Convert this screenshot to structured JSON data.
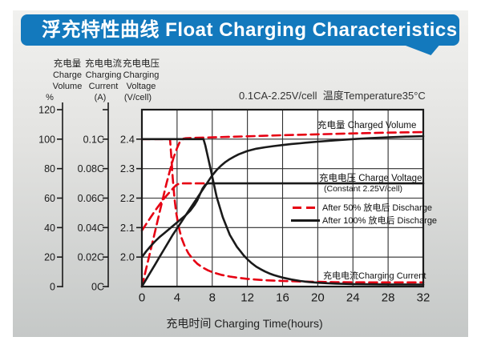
{
  "banner": {
    "title": "浮充特性曲线 Float Charging Characteristics",
    "color": "#1379bd"
  },
  "axes": {
    "volume": {
      "cjk": "充电量",
      "en1": "Charge",
      "en2": "Volume",
      "unit": "%"
    },
    "current": {
      "cjk": "充电电流",
      "en1": "Charging",
      "en2": "Current",
      "unit": "(A)"
    },
    "voltage": {
      "cjk": "充电电压",
      "en1": "Charging",
      "en2": "Voltage",
      "unit": "(V/cell)"
    }
  },
  "condition_note": "0.1CA-2.25V/cell  温度Temperature35°C",
  "x_axis_label": "充电时间 Charging Time(hours)",
  "chart_data": {
    "type": "line",
    "title": "浮充特性曲线 Float Charging Characteristics",
    "xlabel": "充电时间 Charging Time(hours)",
    "x_unit": "hours",
    "xlim": [
      0,
      32
    ],
    "x_ticks": [
      0,
      4,
      8,
      12,
      16,
      20,
      24,
      28,
      32
    ],
    "grid": true,
    "y_scale_note": "series y values are on the charge-volume % scale (0-120); charging current C-rate = y/1000 (100 => 0.1C); charging voltage V/cell = 1.9 + y/200 (70 => 2.25V)",
    "y_percent_lim": [
      0,
      120
    ],
    "volume_ticks": [
      [
        "120",
        120
      ],
      [
        "100",
        100
      ],
      [
        "80",
        80
      ],
      [
        "60",
        60
      ],
      [
        "40",
        40
      ],
      [
        "20",
        20
      ],
      [
        "0",
        0
      ]
    ],
    "current_ticks": [
      [
        "0.1C",
        100
      ],
      [
        "0.08C",
        80
      ],
      [
        "0.06C",
        60
      ],
      [
        "0.04C",
        40
      ],
      [
        "0.02C",
        20
      ],
      [
        "0C",
        0
      ]
    ],
    "voltage_ticks": [
      [
        "2.4",
        100
      ],
      [
        "2.3",
        80
      ],
      [
        "2.2",
        60
      ],
      [
        "2.1",
        40
      ],
      [
        "2.0",
        20
      ]
    ],
    "annotations": {
      "charged_volume": "充电量 Charged Volume",
      "charge_voltage": "充电电压 Charge Voltage",
      "charge_voltage_sub": "(Constant 2.25V/cell)",
      "charging_current": "充电电流Charging Current"
    },
    "legend": [
      {
        "label": "After 50%  放电后 Discharge",
        "color": "#e60012",
        "style": "dashed"
      },
      {
        "label": "After 100%  放电后 Discharge",
        "color": "#1a1a1a",
        "style": "solid"
      }
    ],
    "colors": {
      "red": "#e60012",
      "black": "#1a1a1a"
    },
    "series": [
      {
        "name": "charged-volume-after-50-discharge",
        "color": "#e60012",
        "dash": true,
        "points": [
          [
            0,
            0
          ],
          [
            0.4,
            10
          ],
          [
            0.8,
            20
          ],
          [
            1.2,
            30
          ],
          [
            1.6,
            40
          ],
          [
            2,
            50
          ],
          [
            2.4,
            60
          ],
          [
            2.8,
            70
          ],
          [
            3.2,
            79
          ],
          [
            3.6,
            87.5
          ],
          [
            4,
            94
          ],
          [
            4.3,
            98
          ],
          [
            4.7,
            100.3
          ],
          [
            5,
            100.6
          ],
          [
            6,
            100.9
          ],
          [
            8,
            101.2
          ],
          [
            10,
            101.6
          ],
          [
            12,
            101.9
          ],
          [
            14,
            102.3
          ],
          [
            16,
            102.7
          ],
          [
            20,
            103.3
          ],
          [
            24,
            103.9
          ],
          [
            28,
            104.4
          ],
          [
            32,
            104.8
          ]
        ]
      },
      {
        "name": "charge-voltage-after-50-discharge",
        "color": "#e60012",
        "dash": true,
        "points": [
          [
            0,
            38
          ],
          [
            0.5,
            42.5
          ],
          [
            1,
            47
          ],
          [
            1.5,
            51.5
          ],
          [
            2,
            55.5
          ],
          [
            2.5,
            59.5
          ],
          [
            3,
            63
          ],
          [
            3.3,
            65
          ],
          [
            3.6,
            67
          ],
          [
            3.9,
            68.8
          ],
          [
            4.2,
            69.8
          ],
          [
            4.5,
            70
          ],
          [
            7.5,
            70
          ]
        ]
      },
      {
        "name": "charging-current-after-50-discharge",
        "color": "#e60012",
        "dash": true,
        "points": [
          [
            0,
            100
          ],
          [
            3.2,
            100
          ],
          [
            3.35,
            88
          ],
          [
            3.5,
            74
          ],
          [
            3.7,
            60
          ],
          [
            3.9,
            50
          ],
          [
            4.2,
            40
          ],
          [
            4.5,
            33
          ],
          [
            4.9,
            27
          ],
          [
            5.3,
            22.5
          ],
          [
            5.8,
            18.5
          ],
          [
            6.3,
            15.5
          ],
          [
            6.9,
            13
          ],
          [
            7.5,
            11
          ],
          [
            8,
            9.8
          ],
          [
            9,
            8
          ],
          [
            10,
            6.8
          ],
          [
            11,
            5.9
          ],
          [
            12,
            5.2
          ],
          [
            13,
            4.7
          ],
          [
            14,
            4.3
          ],
          [
            15,
            4
          ],
          [
            16,
            3.8
          ],
          [
            18,
            3.4
          ],
          [
            20,
            3.2
          ],
          [
            22,
            3
          ],
          [
            24,
            2.9
          ],
          [
            28,
            2.8
          ],
          [
            32,
            2.8
          ]
        ]
      },
      {
        "name": "charged-volume-after-100-discharge",
        "color": "#1a1a1a",
        "dash": false,
        "points": [
          [
            0,
            0
          ],
          [
            0.5,
            5
          ],
          [
            1,
            10
          ],
          [
            1.5,
            15
          ],
          [
            2,
            20
          ],
          [
            2.5,
            25
          ],
          [
            3,
            30
          ],
          [
            3.5,
            35
          ],
          [
            4,
            39.5
          ],
          [
            4.5,
            44
          ],
          [
            5,
            48.5
          ],
          [
            5.5,
            53
          ],
          [
            6,
            57.5
          ],
          [
            6.5,
            62
          ],
          [
            7,
            66.5
          ],
          [
            7.5,
            71
          ],
          [
            8,
            75.5
          ],
          [
            8.5,
            79
          ],
          [
            9,
            82
          ],
          [
            9.5,
            84.5
          ],
          [
            10,
            86.5
          ],
          [
            10.5,
            88.2
          ],
          [
            11,
            89.7
          ],
          [
            12,
            92
          ],
          [
            13,
            93.5
          ],
          [
            14,
            94.5
          ],
          [
            15,
            95.3
          ],
          [
            16,
            96
          ],
          [
            17,
            96.7
          ],
          [
            18,
            97.2
          ],
          [
            19,
            97.8
          ],
          [
            20,
            98.3
          ],
          [
            22,
            99.2
          ],
          [
            24,
            100
          ],
          [
            26,
            100.7
          ],
          [
            28,
            101.2
          ],
          [
            30,
            101.7
          ],
          [
            32,
            102
          ]
        ]
      },
      {
        "name": "charge-voltage-after-100-discharge",
        "color": "#1a1a1a",
        "dash": false,
        "points": [
          [
            0,
            20
          ],
          [
            0.5,
            24
          ],
          [
            1,
            27.5
          ],
          [
            1.5,
            30.7
          ],
          [
            2,
            33.5
          ],
          [
            2.5,
            36
          ],
          [
            3,
            38.5
          ],
          [
            3.5,
            41
          ],
          [
            4,
            43.5
          ],
          [
            4.5,
            46
          ],
          [
            5,
            48.5
          ],
          [
            5.5,
            51.5
          ],
          [
            6,
            55.5
          ],
          [
            6.3,
            58.5
          ],
          [
            6.6,
            62.5
          ],
          [
            6.9,
            66.5
          ],
          [
            7.2,
            69
          ],
          [
            7.5,
            70
          ],
          [
            32,
            70
          ]
        ]
      },
      {
        "name": "charging-current-after-100-discharge",
        "color": "#1a1a1a",
        "dash": false,
        "points": [
          [
            0,
            100
          ],
          [
            7,
            100
          ],
          [
            7.2,
            96
          ],
          [
            7.5,
            88
          ],
          [
            7.8,
            80
          ],
          [
            8.1,
            72
          ],
          [
            8.5,
            61
          ],
          [
            8.9,
            53
          ],
          [
            9.2,
            47
          ],
          [
            9.6,
            41
          ],
          [
            10,
            35
          ],
          [
            10.4,
            31
          ],
          [
            10.8,
            27
          ],
          [
            11.2,
            24
          ],
          [
            11.6,
            21
          ],
          [
            12,
            18.5
          ],
          [
            12.5,
            15.8
          ],
          [
            13,
            13.5
          ],
          [
            13.5,
            11.8
          ],
          [
            14,
            10.2
          ],
          [
            14.5,
            8.9
          ],
          [
            15,
            7.8
          ],
          [
            15.5,
            6.9
          ],
          [
            16,
            6.1
          ],
          [
            17,
            4.8
          ],
          [
            18,
            3.8
          ],
          [
            19,
            3.1
          ],
          [
            20,
            2.6
          ],
          [
            21,
            2.3
          ],
          [
            22,
            2
          ],
          [
            24,
            1.7
          ],
          [
            26,
            1.5
          ],
          [
            28,
            1.4
          ],
          [
            30,
            1.4
          ],
          [
            32,
            1.3
          ]
        ]
      }
    ]
  }
}
